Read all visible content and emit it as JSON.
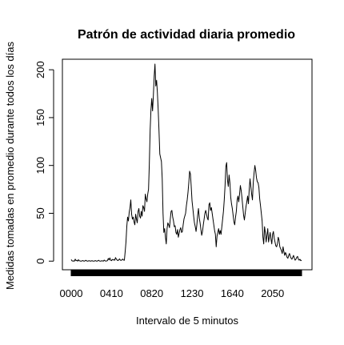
{
  "chart_data": {
    "type": "line",
    "title": "Patrón de actividad diaria promedio",
    "xlabel": "Intervalo de 5 minutos",
    "ylabel": "Medidas tomadas en promedio durante todos los días",
    "xlim": [
      0,
      288
    ],
    "ylim": [
      -9,
      211
    ],
    "yticks": [
      0,
      50,
      100,
      150,
      200
    ],
    "xticks": [
      {
        "index": 0,
        "label": "0000"
      },
      {
        "index": 50,
        "label": "0410"
      },
      {
        "index": 100,
        "label": "0820"
      },
      {
        "index": 150,
        "label": "1230"
      },
      {
        "index": 200,
        "label": "1640"
      },
      {
        "index": 250,
        "label": "2050"
      }
    ],
    "x_axis_style": "one tick per interval (288), forming a solid black band",
    "color": "#000000",
    "series": [
      {
        "values": [
          1.7,
          0.3,
          0.1,
          0.2,
          0.0,
          2.1,
          0.5,
          0.9,
          0.0,
          1.5,
          0.4,
          0.2,
          0.0,
          0.1,
          0.6,
          0.3,
          0.0,
          0.2,
          0.9,
          0.4,
          0.0,
          0.1,
          0.5,
          0.2,
          0.0,
          0.3,
          0.4,
          0.1,
          0.0,
          0.2,
          0.6,
          0.1,
          0.0,
          0.3,
          0.9,
          0.2,
          0.0,
          0.1,
          0.4,
          0.2,
          0.0,
          1.1,
          0.3,
          0.1,
          0.2,
          0.5,
          2.8,
          1.3,
          3.4,
          1.0,
          0.5,
          1.8,
          1.2,
          1.6,
          0.9,
          3.7,
          2.2,
          1.1,
          0.6,
          1.3,
          2.4,
          1.0,
          0.8,
          1.3,
          2.2,
          1.1,
          0.9,
          10.0,
          20.0,
          36.0,
          46.0,
          42.0,
          51.0,
          56.0,
          64.0,
          49.0,
          44.0,
          46.0,
          41.0,
          38.0,
          49.0,
          44.0,
          40.0,
          52.0,
          55.0,
          47.0,
          45.0,
          52.0,
          47.0,
          58.0,
          56.0,
          52.0,
          70.0,
          65.0,
          62.0,
          70.0,
          75.0,
          102.0,
          137.0,
          158.0,
          170.0,
          157.0,
          173.0,
          193.0,
          206.0,
          183.0,
          189.0,
          176.0,
          158.0,
          136.0,
          112.0,
          108.0,
          104.0,
          86.0,
          50.0,
          30.0,
          34.0,
          25.0,
          18.0,
          34.0,
          40.0,
          38.0,
          35.0,
          44.0,
          52.0,
          53.0,
          46.0,
          42.0,
          36.0,
          37.0,
          30.0,
          28.0,
          33.0,
          25.0,
          29.0,
          33.0,
          35.0,
          30.0,
          31.0,
          38.0,
          44.0,
          47.0,
          50.0,
          58.0,
          64.0,
          72.0,
          82.0,
          94.0,
          91.0,
          78.0,
          63.0,
          55.0,
          47.0,
          40.0,
          36.0,
          31.0,
          38.0,
          48.0,
          55.0,
          45.0,
          40.0,
          33.0,
          27.0,
          31.0,
          38.0,
          44.0,
          50.0,
          53.0,
          49.0,
          45.0,
          43.0,
          59.0,
          61.0,
          53.0,
          56.0,
          50.0,
          44.0,
          38.0,
          32.0,
          28.0,
          15.0,
          26.0,
          30.0,
          34.0,
          28.0,
          32.0,
          28.0,
          36.0,
          44.0,
          52.0,
          64.0,
          79.0,
          99.0,
          103.0,
          85.0,
          78.0,
          90.0,
          82.0,
          67.0,
          60.0,
          55.0,
          48.0,
          41.0,
          38.0,
          46.0,
          52.0,
          64.0,
          68.0,
          62.0,
          70.0,
          79.0,
          74.0,
          66.0,
          57.0,
          48.0,
          43.0,
          50.0,
          57.0,
          62.0,
          68.0,
          60.0,
          75.0,
          86.0,
          78.0,
          70.0,
          64.0,
          82.0,
          92.0,
          100.0,
          95.0,
          87.0,
          83.0,
          82.0,
          77.0,
          65.0,
          58.0,
          50.0,
          42.0,
          25.0,
          18.0,
          36.0,
          30.0,
          20.0,
          27.0,
          34.0,
          20.0,
          25.0,
          30.0,
          23.0,
          18.0,
          28.0,
          31.0,
          24.0,
          20.0,
          16.0,
          15.0,
          18.0,
          25.0,
          22.0,
          15.0,
          13.0,
          11.0,
          8.0,
          15.0,
          10.0,
          6.0,
          9.0,
          7.0,
          4.0,
          3.0,
          6.0,
          8.0,
          5.0,
          3.0,
          2.0,
          4.0,
          6.0,
          3.0,
          1.0,
          2.0,
          4.0,
          5.0,
          2.0,
          1.0,
          2.0,
          0.5,
          1.0
        ]
      }
    ]
  }
}
